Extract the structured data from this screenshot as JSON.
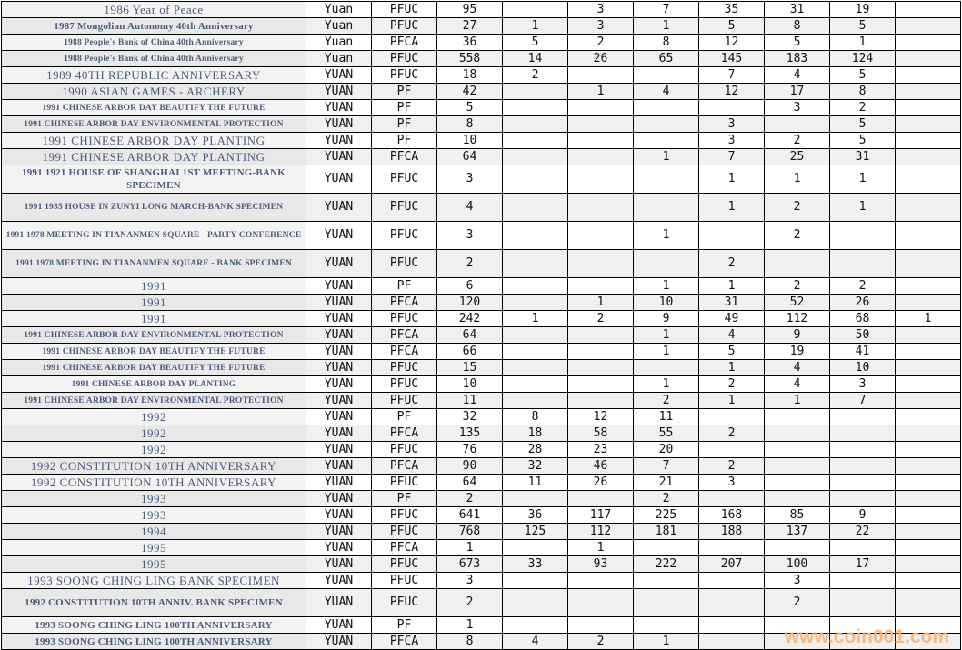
{
  "table": {
    "rows": [
      {
        "name": "1986 Year of Peace",
        "unit": "Yuan",
        "type": "PFUC",
        "total": "95",
        "counts": [
          "",
          "3",
          "7",
          "35",
          "31",
          "19",
          ""
        ]
      },
      {
        "name": "1987 Mongolian Autonomy 40th Anniversary",
        "unit": "Yuan",
        "type": "PFUC",
        "total": "27",
        "counts": [
          "1",
          "3",
          "1",
          "5",
          "8",
          "5",
          ""
        ]
      },
      {
        "name": "1988 People's Bank of China 40th Anniversary",
        "unit": "Yuan",
        "type": "PFCA",
        "total": "36",
        "counts": [
          "5",
          "2",
          "8",
          "12",
          "5",
          "1",
          ""
        ]
      },
      {
        "name": "1988 People's Bank of China 40th Anniversary",
        "unit": "Yuan",
        "type": "PFUC",
        "total": "558",
        "counts": [
          "14",
          "26",
          "65",
          "145",
          "183",
          "124",
          ""
        ]
      },
      {
        "name": "1989 40TH REPUBLIC ANNIVERSARY",
        "unit": "YUAN",
        "type": "PFUC",
        "total": "18",
        "counts": [
          "2",
          "",
          "",
          "7",
          "4",
          "5",
          ""
        ]
      },
      {
        "name": "1990 ASIAN GAMES - ARCHERY",
        "unit": "YUAN",
        "type": "PF",
        "total": "42",
        "counts": [
          "",
          "1",
          "4",
          "12",
          "17",
          "8",
          ""
        ]
      },
      {
        "name": "1991 CHINESE ARBOR DAY BEAUTIFY THE FUTURE",
        "unit": "YUAN",
        "type": "PF",
        "total": "5",
        "counts": [
          "",
          "",
          "",
          "",
          "3",
          "2",
          ""
        ]
      },
      {
        "name": "1991 CHINESE ARBOR DAY ENVIRONMENTAL PROTECTION",
        "unit": "YUAN",
        "type": "PF",
        "total": "8",
        "counts": [
          "",
          "",
          "",
          "3",
          "",
          "5",
          ""
        ]
      },
      {
        "name": "1991 CHINESE ARBOR DAY PLANTING",
        "unit": "YUAN",
        "type": "PF",
        "total": "10",
        "counts": [
          "",
          "",
          "",
          "3",
          "2",
          "5",
          ""
        ]
      },
      {
        "name": "1991 CHINESE ARBOR DAY PLANTING",
        "unit": "YUAN",
        "type": "PFCA",
        "total": "64",
        "counts": [
          "",
          "",
          "1",
          "7",
          "25",
          "31",
          ""
        ]
      },
      {
        "name": "1991 1921 HOUSE OF SHANGHAI 1ST MEETING-BANK SPECIMEN",
        "unit": "YUAN",
        "type": "PFUC",
        "total": "3",
        "counts": [
          "",
          "",
          "",
          "1",
          "1",
          "1",
          ""
        ]
      },
      {
        "name": "1991 1935 HOUSE IN ZUNYI LONG MARCH-BANK SPECIMEN",
        "unit": "YUAN",
        "type": "PFUC",
        "total": "4",
        "counts": [
          "",
          "",
          "",
          "1",
          "2",
          "1",
          ""
        ]
      },
      {
        "name": "1991 1978 MEETING IN TIANANMEN SQUARE - PARTY CONFERENCE",
        "unit": "YUAN",
        "type": "PFUC",
        "total": "3",
        "counts": [
          "",
          "",
          "1",
          "",
          "2",
          "",
          ""
        ]
      },
      {
        "name": "1991 1978 MEETING IN TIANANMEN SQUARE - BANK SPECIMEN",
        "unit": "YUAN",
        "type": "PFUC",
        "total": "2",
        "counts": [
          "",
          "",
          "",
          "2",
          "",
          "",
          ""
        ]
      },
      {
        "name": "1991",
        "unit": "YUAN",
        "type": "PF",
        "total": "6",
        "counts": [
          "",
          "",
          "1",
          "1",
          "2",
          "2",
          ""
        ]
      },
      {
        "name": "1991",
        "unit": "YUAN",
        "type": "PFCA",
        "total": "120",
        "counts": [
          "",
          "1",
          "10",
          "31",
          "52",
          "26",
          ""
        ]
      },
      {
        "name": "1991",
        "unit": "YUAN",
        "type": "PFUC",
        "total": "242",
        "counts": [
          "1",
          "2",
          "9",
          "49",
          "112",
          "68",
          "1"
        ]
      },
      {
        "name": "1991 CHINESE ARBOR DAY ENVIRONMENTAL PROTECTION",
        "unit": "YUAN",
        "type": "PFCA",
        "total": "64",
        "counts": [
          "",
          "",
          "1",
          "4",
          "9",
          "50",
          ""
        ]
      },
      {
        "name": "1991 CHINESE ARBOR DAY BEAUTIFY THE FUTURE",
        "unit": "YUAN",
        "type": "PFCA",
        "total": "66",
        "counts": [
          "",
          "",
          "1",
          "5",
          "19",
          "41",
          ""
        ]
      },
      {
        "name": "1991 CHINESE ARBOR DAY BEAUTIFY THE FUTURE",
        "unit": "YUAN",
        "type": "PFUC",
        "total": "15",
        "counts": [
          "",
          "",
          "",
          "1",
          "4",
          "10",
          ""
        ]
      },
      {
        "name": "1991 CHINESE ARBOR DAY PLANTING",
        "unit": "YUAN",
        "type": "PFUC",
        "total": "10",
        "counts": [
          "",
          "",
          "1",
          "2",
          "4",
          "3",
          ""
        ]
      },
      {
        "name": "1991 CHINESE ARBOR DAY ENVIRONMENTAL PROTECTION",
        "unit": "YUAN",
        "type": "PFUC",
        "total": "11",
        "counts": [
          "",
          "",
          "2",
          "1",
          "1",
          "7",
          ""
        ]
      },
      {
        "name": "1992",
        "unit": "YUAN",
        "type": "PF",
        "total": "32",
        "counts": [
          "8",
          "12",
          "11",
          "",
          "",
          "",
          ""
        ]
      },
      {
        "name": "1992",
        "unit": "YUAN",
        "type": "PFCA",
        "total": "135",
        "counts": [
          "18",
          "58",
          "55",
          "2",
          "",
          "",
          ""
        ]
      },
      {
        "name": "1992",
        "unit": "YUAN",
        "type": "PFUC",
        "total": "76",
        "counts": [
          "28",
          "23",
          "20",
          "",
          "",
          "",
          ""
        ]
      },
      {
        "name": "1992 CONSTITUTION 10TH ANNIVERSARY",
        "unit": "YUAN",
        "type": "PFCA",
        "total": "90",
        "counts": [
          "32",
          "46",
          "7",
          "2",
          "",
          "",
          ""
        ]
      },
      {
        "name": "1992 CONSTITUTION 10TH ANNIVERSARY",
        "unit": "YUAN",
        "type": "PFUC",
        "total": "64",
        "counts": [
          "11",
          "26",
          "21",
          "3",
          "",
          "",
          ""
        ]
      },
      {
        "name": "1993",
        "unit": "YUAN",
        "type": "PF",
        "total": "2",
        "counts": [
          "",
          "",
          "2",
          "",
          "",
          "",
          ""
        ]
      },
      {
        "name": "1993",
        "unit": "YUAN",
        "type": "PFUC",
        "total": "641",
        "counts": [
          "36",
          "117",
          "225",
          "168",
          "85",
          "9",
          ""
        ]
      },
      {
        "name": "1994",
        "unit": "YUAN",
        "type": "PFUC",
        "total": "768",
        "counts": [
          "125",
          "112",
          "181",
          "188",
          "137",
          "22",
          ""
        ]
      },
      {
        "name": "1995",
        "unit": "YUAN",
        "type": "PFCA",
        "total": "1",
        "counts": [
          "",
          "1",
          "",
          "",
          "",
          "",
          ""
        ]
      },
      {
        "name": "1995",
        "unit": "YUAN",
        "type": "PFUC",
        "total": "673",
        "counts": [
          "33",
          "93",
          "222",
          "207",
          "100",
          "17",
          ""
        ]
      },
      {
        "name": "1993 SOONG CHING LING BANK SPECIMEN",
        "unit": "YUAN",
        "type": "PFUC",
        "total": "3",
        "counts": [
          "",
          "",
          "",
          "",
          "3",
          "",
          ""
        ]
      },
      {
        "name": "1992 CONSTITUTION 10TH ANNIV. BANK SPECIMEN",
        "unit": "YUAN",
        "type": "PFUC",
        "total": "2",
        "counts": [
          "",
          "",
          "",
          "",
          "2",
          "",
          ""
        ]
      },
      {
        "name": "1993 SOONG CHING LING 100TH ANNIVERSARY",
        "unit": "YUAN",
        "type": "PF",
        "total": "1",
        "counts": [
          "",
          "",
          "",
          "",
          "",
          "",
          ""
        ]
      },
      {
        "name": "1993 SOONG CHING LING 100TH ANNIVERSARY",
        "unit": "YUAN",
        "type": "PFCA",
        "total": "8",
        "counts": [
          "4",
          "2",
          "1",
          "",
          "",
          "",
          ""
        ]
      }
    ]
  },
  "watermark": "www.coin001.com"
}
